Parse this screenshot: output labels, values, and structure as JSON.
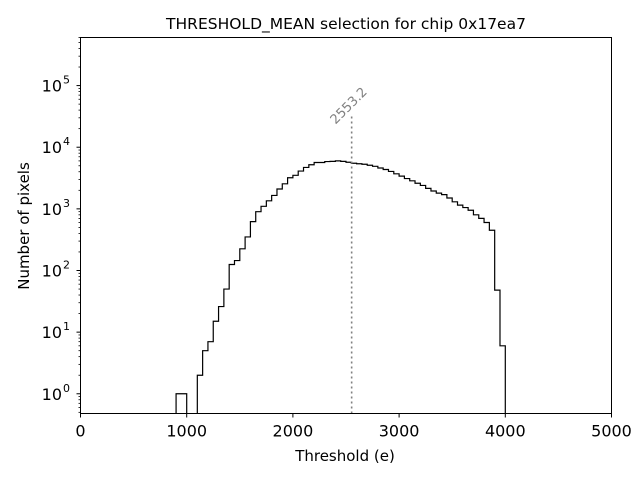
{
  "chart_data": {
    "type": "histogram-step",
    "title": "THRESHOLD_MEAN selection for chip 0x17ea7",
    "xlabel": "Threshold (e)",
    "ylabel": "Number of pixels",
    "xlim": [
      0,
      5000
    ],
    "ylim_log10": [
      -0.32,
      5.78
    ],
    "yscale": "log",
    "bin_width": 50,
    "bins_start": 900,
    "counts": [
      1,
      1,
      0,
      0,
      2,
      5,
      7,
      15,
      26,
      50,
      125,
      145,
      225,
      350,
      620,
      900,
      1100,
      1350,
      1650,
      2100,
      2550,
      3200,
      3500,
      4100,
      4700,
      5200,
      5650,
      5650,
      5850,
      5900,
      6000,
      5900,
      5700,
      5500,
      5400,
      5300,
      5100,
      4900,
      4600,
      4350,
      4050,
      3700,
      3400,
      3100,
      2850,
      2600,
      2400,
      2150,
      1950,
      1800,
      1700,
      1500,
      1300,
      1150,
      1050,
      950,
      800,
      700,
      600,
      450,
      48,
      6
    ],
    "x_ticks": [
      0,
      1000,
      2000,
      3000,
      4000,
      5000
    ],
    "x_tick_labels": [
      "0",
      "1000",
      "2000",
      "3000",
      "4000",
      "5000"
    ],
    "y_ticks_log10": [
      0,
      1,
      2,
      3,
      4,
      5
    ],
    "y_tick_labels": [
      {
        "base": "10",
        "exp": "0"
      },
      {
        "base": "10",
        "exp": "1"
      },
      {
        "base": "10",
        "exp": "2"
      },
      {
        "base": "10",
        "exp": "3"
      },
      {
        "base": "10",
        "exp": "4"
      },
      {
        "base": "10",
        "exp": "5"
      }
    ],
    "threshold_line": {
      "x": 2553.2,
      "label": "2553.2",
      "top_value": 35000
    },
    "colors": {
      "line": "#000000",
      "threshold": "#808080",
      "threshold_label": "#808080"
    }
  }
}
